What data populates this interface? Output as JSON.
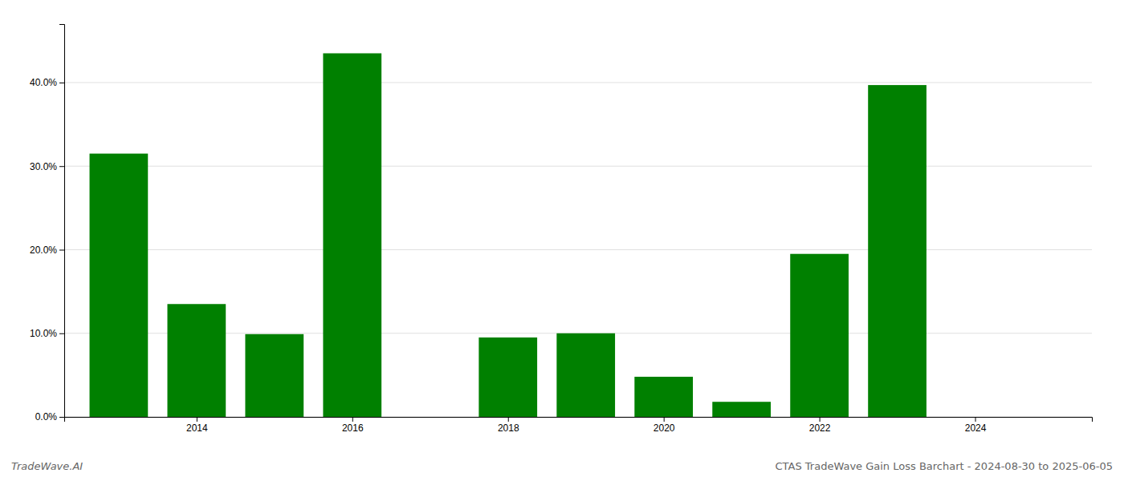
{
  "chart_data": {
    "type": "bar",
    "x": [
      2013,
      2014,
      2015,
      2016,
      2018,
      2019,
      2020,
      2021,
      2022,
      2023
    ],
    "values": [
      0.315,
      0.135,
      0.099,
      0.435,
      0.095,
      0.1,
      0.048,
      0.018,
      0.195,
      0.397
    ],
    "color": "#008000",
    "xlim": [
      2012.3,
      2025.5
    ],
    "xticks": [
      2014,
      2016,
      2018,
      2020,
      2022,
      2024
    ],
    "ylim": [
      0,
      0.47
    ],
    "yticks": [
      {
        "value": 0.0,
        "label": "0.0%"
      },
      {
        "value": 0.1,
        "label": "10.0%"
      },
      {
        "value": 0.2,
        "label": "20.0%"
      },
      {
        "value": 0.3,
        "label": "30.0%"
      },
      {
        "value": 0.4,
        "label": "40.0%"
      }
    ],
    "grid": true,
    "annotations": [
      "TradeWave.AI",
      "CTAS TradeWave Gain Loss Barchart - 2024-08-30 to 2025-06-05"
    ]
  }
}
